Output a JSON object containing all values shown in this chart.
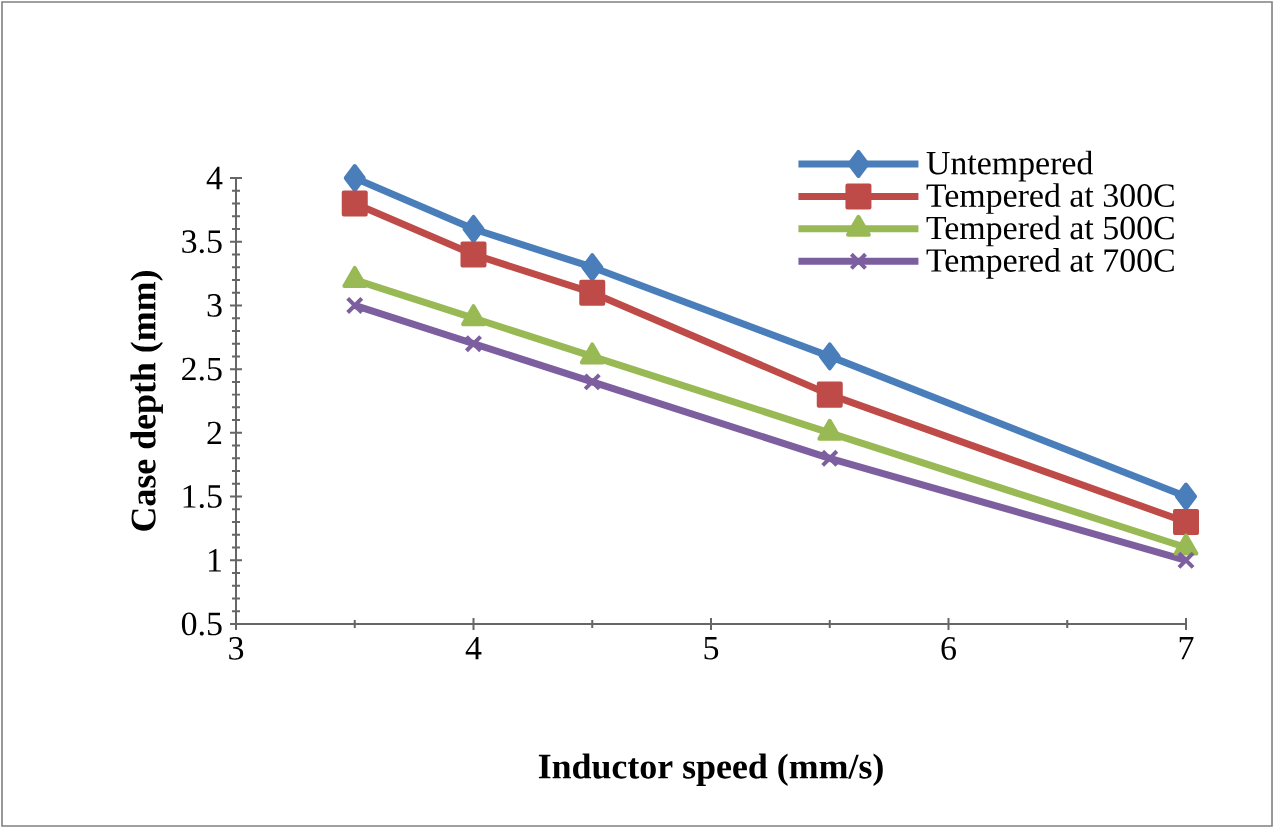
{
  "chart_data": {
    "type": "line",
    "xlabel": "Inductor speed (mm/s)",
    "ylabel": "Case depth (mm)",
    "x": [
      3.5,
      4,
      4.5,
      5.5,
      7
    ],
    "series": [
      {
        "name": "Untempered",
        "color": "#4a7ebb",
        "marker": "diamond",
        "values": [
          4.0,
          3.6,
          3.3,
          2.6,
          1.5
        ]
      },
      {
        "name": "Tempered at 300C",
        "color": "#be4b48",
        "marker": "square",
        "values": [
          3.8,
          3.4,
          3.1,
          2.3,
          1.3
        ]
      },
      {
        "name": "Tempered at 500C",
        "color": "#98b954",
        "marker": "triangle",
        "values": [
          3.2,
          2.9,
          2.6,
          2.0,
          1.1
        ]
      },
      {
        "name": "Tempered at 700C",
        "color": "#7d5fa0",
        "marker": "cross",
        "values": [
          3.0,
          2.7,
          2.4,
          1.8,
          1.0
        ]
      }
    ],
    "xlim": [
      3,
      7
    ],
    "xticks": [
      3,
      4,
      5,
      6,
      7
    ],
    "ylim": [
      0.5,
      4
    ],
    "yticks": [
      0.5,
      1,
      1.5,
      2,
      2.5,
      3,
      3.5,
      4
    ],
    "grid": false,
    "legend": "top right",
    "line_style": "solid"
  }
}
